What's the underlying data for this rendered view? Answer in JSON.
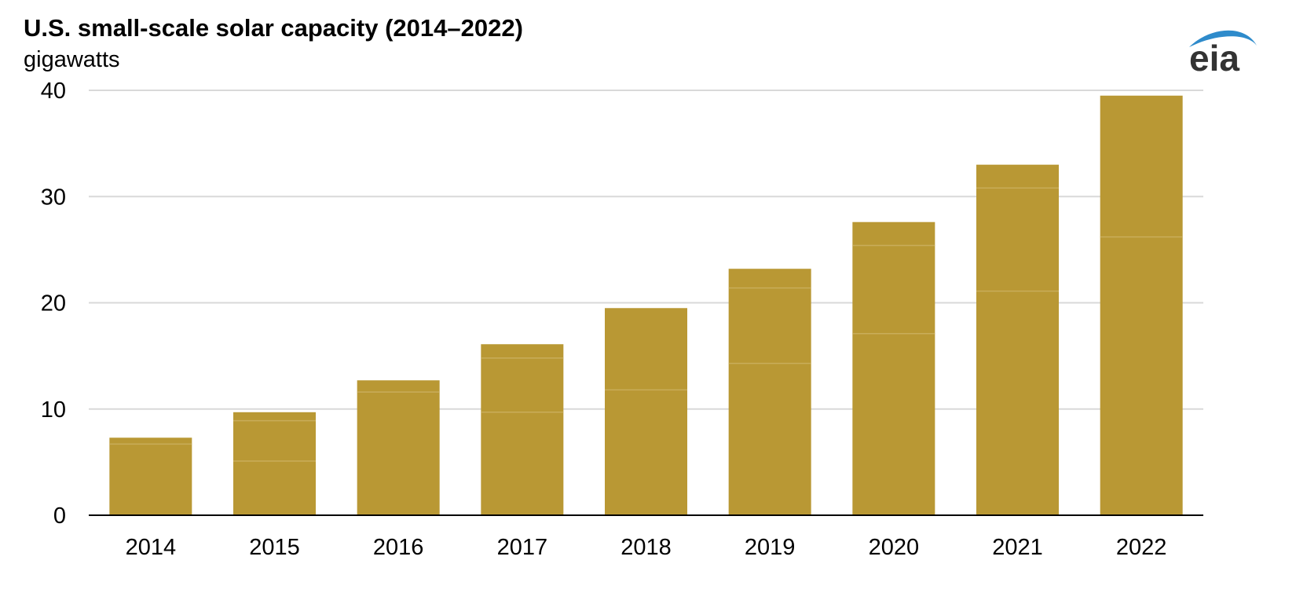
{
  "chart_data": {
    "type": "bar",
    "title": "U.S. small-scale solar capacity (2014–2022)",
    "subtitle": "gigawatts",
    "xlabel": "",
    "ylabel": "",
    "categories": [
      "2014",
      "2015",
      "2016",
      "2017",
      "2018",
      "2019",
      "2020",
      "2021",
      "2022"
    ],
    "values": [
      7.3,
      9.7,
      12.7,
      16.1,
      19.5,
      23.2,
      27.6,
      33.0,
      39.5
    ],
    "segment_boundaries": [
      [
        6.7
      ],
      [
        5.1,
        8.9
      ],
      [
        11.6
      ],
      [
        9.7,
        14.8
      ],
      [
        11.8
      ],
      [
        14.3,
        21.4
      ],
      [
        17.1,
        25.4
      ],
      [
        21.1,
        30.8
      ],
      [
        26.2
      ]
    ],
    "ylim": [
      0,
      40
    ],
    "yticks": [
      0,
      10,
      20,
      30,
      40
    ],
    "grid": true,
    "legend": "none",
    "colors": {
      "bar": "#B99834",
      "segment_line": "#C9AD5A",
      "grid": "#D9D9D9",
      "axis": "#000000",
      "logo_text": "#333333",
      "logo_arc": "#2E8BCB"
    }
  },
  "logo": {
    "text": "eia",
    "icon": "eia-logo-arc"
  }
}
